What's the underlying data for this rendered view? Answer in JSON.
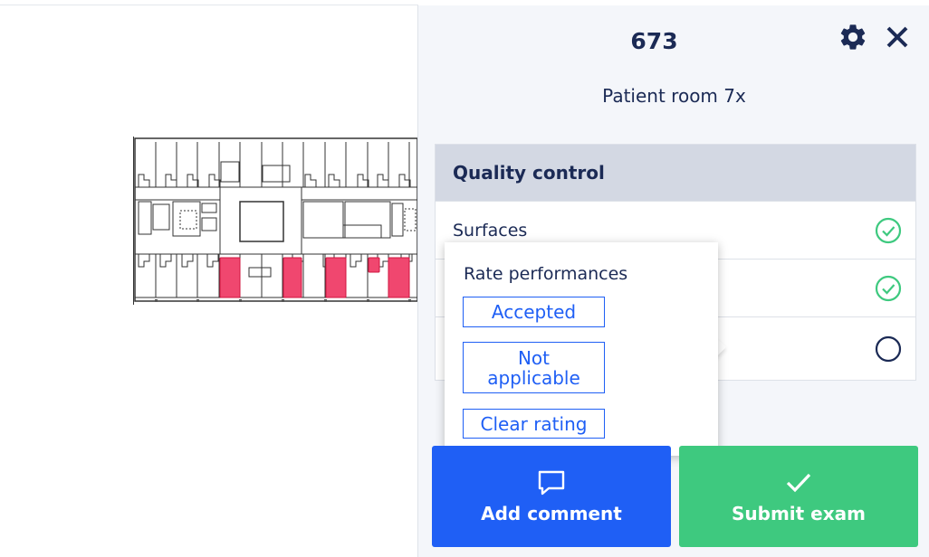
{
  "panel": {
    "room_number": "673",
    "room_name": "Patient room 7x"
  },
  "quality_control": {
    "title": "Quality control",
    "items": [
      {
        "label": "Surfaces",
        "status": "accepted"
      },
      {
        "label": "",
        "status": "accepted"
      },
      {
        "label": "",
        "status": "unrated"
      }
    ]
  },
  "rating_popup": {
    "title": "Rate performances",
    "options": [
      "Accepted",
      "Not applicable",
      "Clear rating"
    ]
  },
  "actions": {
    "add_comment": "Add comment",
    "submit_exam": "Submit exam"
  },
  "colors": {
    "primary": "#1f5ff5",
    "success": "#3ec97f",
    "text": "#1b2a55",
    "highlight_room": "#f0476f"
  },
  "icons": {
    "settings": "gear-icon",
    "close": "close-icon",
    "accepted": "check-circle-icon",
    "unrated": "empty-circle-icon",
    "comment": "speech-bubble-icon",
    "submit": "checkmark-icon"
  }
}
